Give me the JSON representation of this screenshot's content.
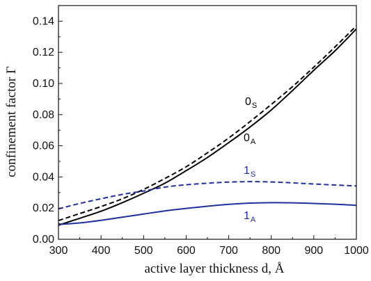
{
  "chart_data": {
    "type": "line",
    "xlabel": "active layer thickness d, Å",
    "ylabel": "confinement factor Γ",
    "xlim": [
      300,
      1000
    ],
    "ylim": [
      0,
      0.15
    ],
    "xticks": [
      "300",
      "400",
      "500",
      "600",
      "700",
      "800",
      "900",
      "1000"
    ],
    "yticks": [
      "0.00",
      "0.02",
      "0.04",
      "0.06",
      "0.08",
      "0.10",
      "0.12",
      "0.14"
    ],
    "grid": false,
    "series": [
      {
        "label_main": "0",
        "label_sub": "S",
        "color": "#000000",
        "style": "dashed",
        "x": [
          300,
          350,
          400,
          450,
          500,
          550,
          600,
          650,
          700,
          750,
          800,
          850,
          900,
          950,
          1000
        ],
        "y": [
          0.012,
          0.0165,
          0.021,
          0.026,
          0.032,
          0.039,
          0.0465,
          0.0555,
          0.065,
          0.0755,
          0.0865,
          0.098,
          0.1105,
          0.1235,
          0.137
        ]
      },
      {
        "label_main": "0",
        "label_sub": "A",
        "color": "#000000",
        "style": "solid",
        "x": [
          300,
          350,
          400,
          450,
          500,
          550,
          600,
          650,
          700,
          750,
          800,
          850,
          900,
          950,
          1000
        ],
        "y": [
          0.009,
          0.0135,
          0.018,
          0.0235,
          0.0295,
          0.036,
          0.044,
          0.0525,
          0.062,
          0.072,
          0.083,
          0.0955,
          0.1085,
          0.121,
          0.135
        ]
      },
      {
        "label_main": "1",
        "label_sub": "S",
        "color": "#1f2fa0",
        "style": "dashed",
        "x": [
          300,
          350,
          400,
          450,
          500,
          550,
          600,
          650,
          700,
          750,
          800,
          850,
          900,
          950,
          1000
        ],
        "y": [
          0.0195,
          0.023,
          0.026,
          0.0288,
          0.031,
          0.0335,
          0.035,
          0.036,
          0.0367,
          0.037,
          0.0368,
          0.0362,
          0.0355,
          0.0348,
          0.0342
        ]
      },
      {
        "label_main": "1",
        "label_sub": "A",
        "color": "#1f2fa0",
        "style": "solid",
        "x": [
          300,
          350,
          400,
          450,
          500,
          550,
          600,
          650,
          700,
          750,
          800,
          850,
          900,
          950,
          1000
        ],
        "y": [
          0.0095,
          0.0105,
          0.0122,
          0.0142,
          0.0162,
          0.0182,
          0.0198,
          0.0212,
          0.0224,
          0.0232,
          0.0235,
          0.0234,
          0.023,
          0.0225,
          0.0218
        ]
      }
    ]
  }
}
